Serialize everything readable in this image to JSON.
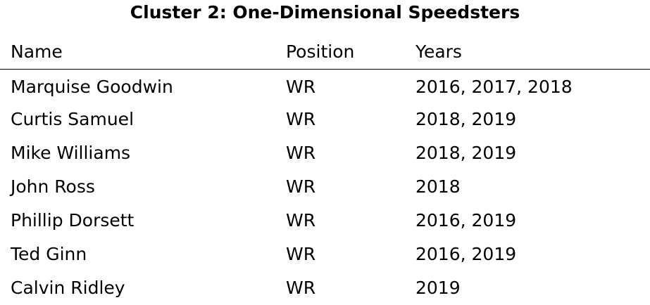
{
  "title": "Cluster 2: One-Dimensional Speedsters",
  "columns": {
    "name": "Name",
    "position": "Position",
    "years": "Years"
  },
  "rows": [
    {
      "name": "Marquise Goodwin",
      "position": "WR",
      "years": "2016, 2017, 2018"
    },
    {
      "name": "Curtis Samuel",
      "position": "WR",
      "years": "2018, 2019"
    },
    {
      "name": "Mike Williams",
      "position": "WR",
      "years": "2018, 2019"
    },
    {
      "name": "John Ross",
      "position": "WR",
      "years": "2018"
    },
    {
      "name": "Phillip Dorsett",
      "position": "WR",
      "years": "2016, 2019"
    },
    {
      "name": "Ted Ginn",
      "position": "WR",
      "years": "2016, 2019"
    },
    {
      "name": "Calvin Ridley",
      "position": "WR",
      "years": "2019"
    }
  ]
}
